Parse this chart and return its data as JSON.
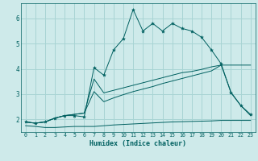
{
  "xlabel": "Humidex (Indice chaleur)",
  "bg_color": "#ceeaea",
  "grid_color": "#a8d4d4",
  "line_color": "#006060",
  "x_ticks": [
    0,
    1,
    2,
    3,
    4,
    5,
    6,
    7,
    8,
    9,
    10,
    11,
    12,
    13,
    14,
    15,
    16,
    17,
    18,
    19,
    20,
    21,
    22,
    23
  ],
  "y_ticks": [
    2,
    3,
    4,
    5,
    6
  ],
  "ylim": [
    1.5,
    6.6
  ],
  "xlim": [
    -0.5,
    23.5
  ],
  "main_line_x": [
    0,
    1,
    2,
    3,
    4,
    5,
    6,
    7,
    8,
    9,
    10,
    11,
    12,
    13,
    14,
    15,
    16,
    17,
    18,
    19,
    20,
    21,
    22,
    23
  ],
  "main_line_y": [
    1.9,
    1.85,
    1.9,
    2.05,
    2.15,
    2.15,
    2.1,
    4.05,
    3.75,
    4.75,
    5.2,
    6.35,
    5.5,
    5.8,
    5.5,
    5.8,
    5.6,
    5.5,
    5.25,
    4.75,
    4.2,
    3.05,
    2.55,
    2.2
  ],
  "line2_x": [
    0,
    1,
    2,
    3,
    4,
    5,
    6,
    7,
    8,
    9,
    10,
    11,
    12,
    13,
    14,
    15,
    16,
    17,
    18,
    19,
    20,
    21,
    22,
    23
  ],
  "line2_y": [
    1.9,
    1.85,
    1.9,
    2.05,
    2.15,
    2.2,
    2.25,
    3.6,
    3.05,
    3.15,
    3.25,
    3.35,
    3.45,
    3.55,
    3.65,
    3.75,
    3.85,
    3.9,
    3.98,
    4.08,
    4.15,
    4.15,
    4.15,
    4.15
  ],
  "line3_x": [
    0,
    1,
    2,
    3,
    4,
    5,
    6,
    7,
    8,
    9,
    10,
    11,
    12,
    13,
    14,
    15,
    16,
    17,
    18,
    19,
    20,
    21,
    22,
    23
  ],
  "line3_y": [
    1.9,
    1.85,
    1.9,
    2.05,
    2.15,
    2.2,
    2.25,
    3.1,
    2.7,
    2.85,
    2.98,
    3.1,
    3.2,
    3.3,
    3.42,
    3.52,
    3.62,
    3.72,
    3.82,
    3.92,
    4.15,
    3.08,
    2.55,
    2.15
  ],
  "flat_line_x": [
    0,
    1,
    2,
    3,
    4,
    5,
    6,
    7,
    8,
    9,
    10,
    11,
    12,
    13,
    14,
    15,
    16,
    17,
    18,
    19,
    20,
    21,
    22,
    23
  ],
  "flat_line_y": [
    1.75,
    1.72,
    1.68,
    1.68,
    1.7,
    1.72,
    1.72,
    1.72,
    1.75,
    1.78,
    1.8,
    1.82,
    1.84,
    1.86,
    1.88,
    1.9,
    1.91,
    1.92,
    1.93,
    1.94,
    1.96,
    1.96,
    1.96,
    1.96
  ]
}
